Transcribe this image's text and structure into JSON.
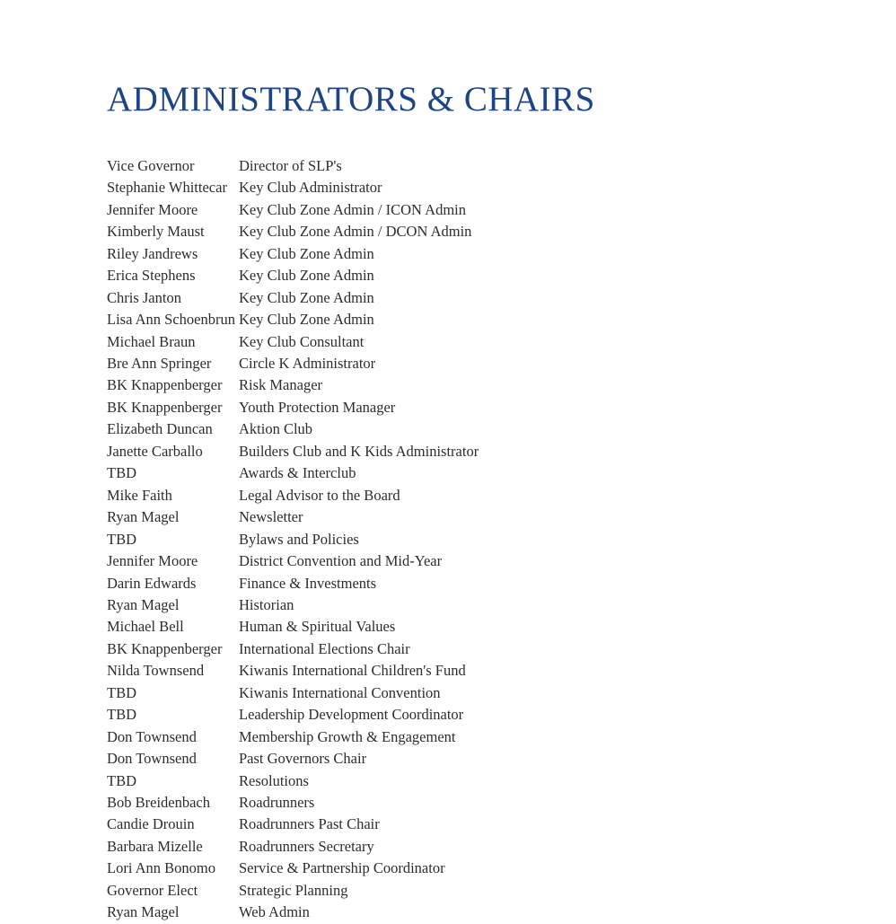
{
  "page": {
    "title": "ADMINISTRATORS & CHAIRS",
    "title_color": "#1c4587",
    "text_color": "#2d2d2d",
    "background_color": "#ffffff"
  },
  "roster": {
    "rows": [
      {
        "name": "Vice Governor",
        "role": "Director of SLP's"
      },
      {
        "name": "Stephanie Whittecar",
        "role": "Key Club Administrator"
      },
      {
        "name": "Jennifer Moore",
        "role": "Key Club Zone Admin / ICON Admin"
      },
      {
        "name": "Kimberly Maust",
        "role": "Key Club Zone Admin / DCON Admin"
      },
      {
        "name": "Riley Jandrews",
        "role": "Key Club Zone Admin"
      },
      {
        "name": "Erica Stephens",
        "role": "Key Club Zone Admin"
      },
      {
        "name": "Chris Janton",
        "role": "Key Club Zone Admin"
      },
      {
        "name": "Lisa Ann Schoenbrun",
        "role": "Key Club Zone Admin"
      },
      {
        "name": "Michael Braun",
        "role": "Key Club Consultant"
      },
      {
        "name": "Bre Ann Springer",
        "role": "Circle K Administrator"
      },
      {
        "name": "BK Knappenberger",
        "role": "Risk Manager"
      },
      {
        "name": "BK Knappenberger",
        "role": "Youth Protection Manager"
      },
      {
        "name": "Elizabeth Duncan",
        "role": "Aktion Club"
      },
      {
        "name": "Janette Carballo",
        "role": "Builders Club and K Kids Administrator"
      },
      {
        "name": "TBD",
        "role": "Awards & Interclub"
      },
      {
        "name": "Mike Faith",
        "role": "Legal Advisor to the Board"
      },
      {
        "name": "Ryan Magel",
        "role": "Newsletter"
      },
      {
        "name": "TBD",
        "role": "Bylaws and Policies"
      },
      {
        "name": "Jennifer Moore",
        "role": "District Convention and Mid-Year"
      },
      {
        "name": "Darin Edwards",
        "role": "Finance & Investments"
      },
      {
        "name": "Ryan Magel",
        "role": "Historian"
      },
      {
        "name": "Michael Bell",
        "role": "Human & Spiritual Values"
      },
      {
        "name": "BK Knappenberger",
        "role": "International Elections Chair"
      },
      {
        "name": "Nilda Townsend",
        "role": "Kiwanis International Children's Fund"
      },
      {
        "name": "TBD",
        "role": "Kiwanis International Convention"
      },
      {
        "name": "TBD",
        "role": "Leadership Development Coordinator"
      },
      {
        "name": "Don Townsend",
        "role": "Membership Growth & Engagement"
      },
      {
        "name": "Don Townsend",
        "role": "Past Governors Chair"
      },
      {
        "name": "TBD",
        "role": "Resolutions"
      },
      {
        "name": "Bob Breidenbach",
        "role": "Roadrunners"
      },
      {
        "name": "Candie Drouin",
        "role": "Roadrunners Past Chair"
      },
      {
        "name": "Barbara Mizelle",
        "role": "Roadrunners Secretary"
      },
      {
        "name": "Lori Ann Bonomo",
        "role": "Service & Partnership Coordinator"
      },
      {
        "name": "Governor Elect",
        "role": "Strategic Planning"
      },
      {
        "name": "Ryan Magel",
        "role": "Web Admin"
      }
    ]
  }
}
